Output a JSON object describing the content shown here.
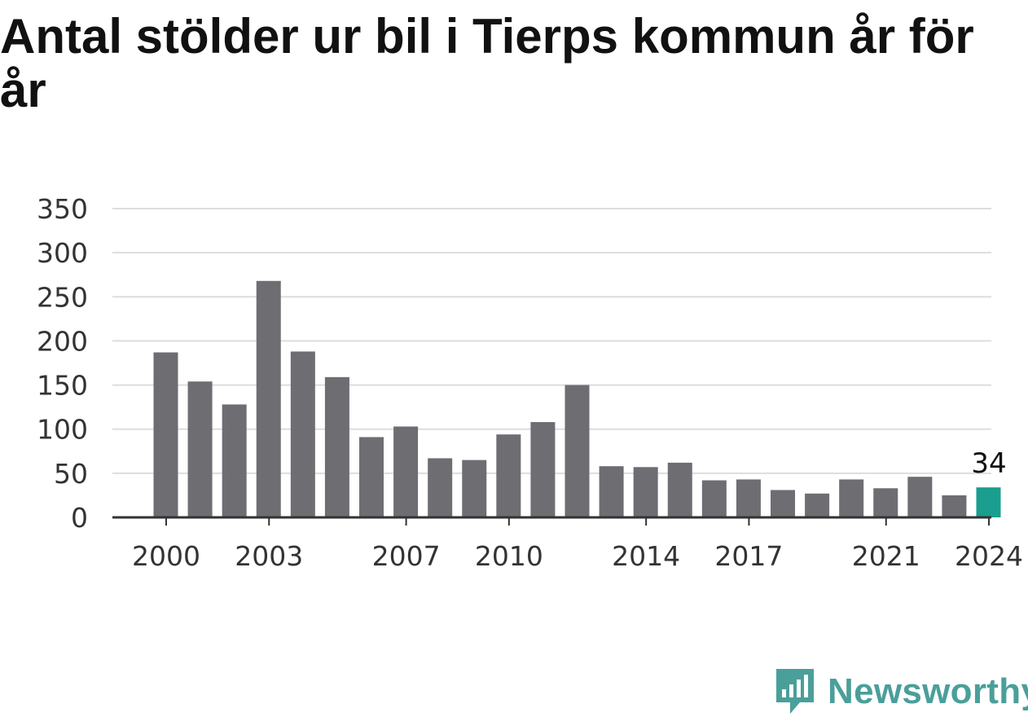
{
  "title": "Antal stölder ur bil i Tierps kommun år för år",
  "brand": {
    "name": "Newsworthy",
    "logo_icon": "newsworthy-logo-icon"
  },
  "colors": {
    "bar": "#6e6d72",
    "highlight": "#1a9e8f",
    "grid": "#dddddd",
    "axis": "#333333",
    "brand": "#4a9f9a"
  },
  "chart_data": {
    "type": "bar",
    "title": "Antal stölder ur bil i Tierps kommun år för år",
    "xlabel": "",
    "ylabel": "",
    "categories": [
      "2000",
      "2001",
      "2002",
      "2003",
      "2004",
      "2005",
      "2006",
      "2007",
      "2008",
      "2009",
      "2010",
      "2011",
      "2012",
      "2013",
      "2014",
      "2015",
      "2016",
      "2017",
      "2018",
      "2019",
      "2020",
      "2021",
      "2022",
      "2023",
      "2024"
    ],
    "values": [
      187,
      154,
      128,
      268,
      188,
      159,
      91,
      103,
      67,
      65,
      94,
      108,
      150,
      58,
      57,
      62,
      42,
      43,
      31,
      27,
      43,
      33,
      46,
      25,
      34
    ],
    "ylim": [
      0,
      350
    ],
    "yticks": [
      "0",
      "50",
      "100",
      "150",
      "200",
      "250",
      "300",
      "350"
    ],
    "xtick_labels": [
      "2000",
      "2003",
      "2007",
      "2010",
      "2014",
      "2017",
      "2021",
      "2024"
    ],
    "highlight": {
      "category": "2024",
      "label": "34"
    },
    "grid": true,
    "legend": "none"
  }
}
